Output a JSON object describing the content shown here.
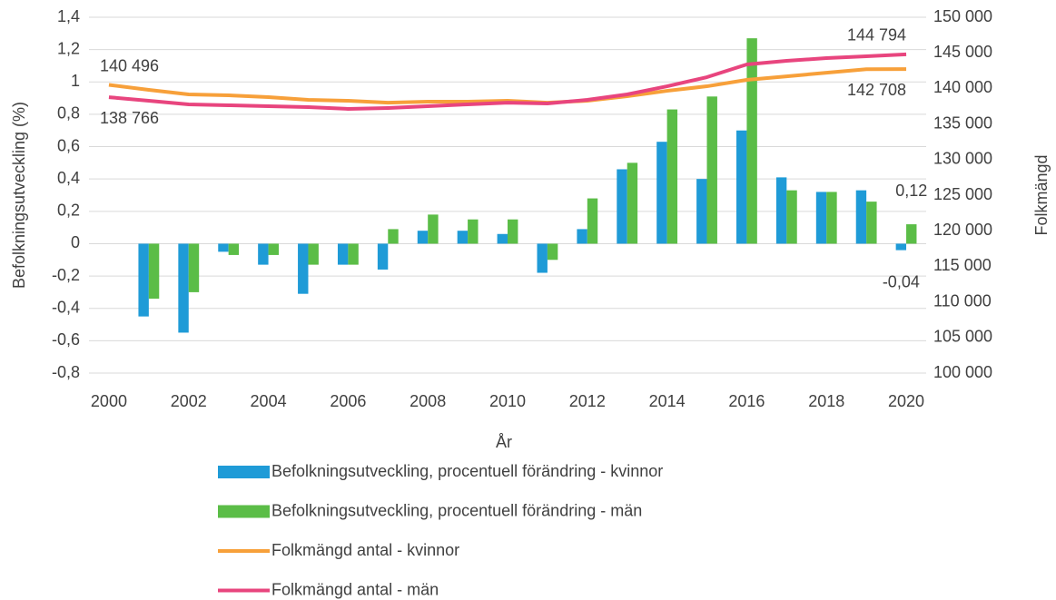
{
  "chart_data": {
    "type": "bar-line",
    "x_label": "År",
    "y_label": "Befolkningsutveckling (%)",
    "y2_label": "Folkmängd",
    "x": [
      2000,
      2001,
      2002,
      2003,
      2004,
      2005,
      2006,
      2007,
      2008,
      2009,
      2010,
      2011,
      2012,
      2013,
      2014,
      2015,
      2016,
      2017,
      2018,
      2019,
      2020
    ],
    "xlim": [
      1999.5,
      2020.5
    ],
    "xticks": [
      2000,
      2002,
      2004,
      2006,
      2008,
      2010,
      2012,
      2014,
      2016,
      2018,
      2020
    ],
    "ylim": [
      -0.8,
      1.4
    ],
    "yticks": [
      {
        "value": -0.8,
        "label": "-0,8"
      },
      {
        "value": -0.6,
        "label": "-0,6"
      },
      {
        "value": -0.4,
        "label": "-0,4"
      },
      {
        "value": -0.2,
        "label": "-0,2"
      },
      0,
      {
        "value": 0.2,
        "label": "0,2"
      },
      {
        "value": 0.4,
        "label": "0,4"
      },
      {
        "value": 0.6,
        "label": "0,6"
      },
      {
        "value": 0.8,
        "label": "0,8"
      },
      1,
      {
        "value": 1.2,
        "label": "1,2"
      },
      {
        "value": 1.4,
        "label": "1,4"
      }
    ],
    "y2lim": [
      100000,
      150000
    ],
    "y2ticks": [
      {
        "value": 100000,
        "label": "100 000"
      },
      {
        "value": 105000,
        "label": "105 000"
      },
      {
        "value": 110000,
        "label": "110 000"
      },
      {
        "value": 115000,
        "label": "115 000"
      },
      {
        "value": 120000,
        "label": "120 000"
      },
      {
        "value": 125000,
        "label": "125 000"
      },
      {
        "value": 130000,
        "label": "130 000"
      },
      {
        "value": 135000,
        "label": "135 000"
      },
      {
        "value": 140000,
        "label": "140 000"
      },
      {
        "value": 145000,
        "label": "145 000"
      },
      {
        "value": 150000,
        "label": "150 000"
      }
    ],
    "grid": true,
    "legend": "bottom",
    "series": [
      {
        "name": "Befolkningsutveckling, procentuell förändring - kvinnor",
        "type": "bar",
        "color": "#1f9bd7",
        "values": [
          null,
          -0.45,
          -0.55,
          -0.05,
          -0.13,
          -0.31,
          -0.13,
          -0.16,
          0.08,
          0.08,
          0.06,
          -0.18,
          0.09,
          0.46,
          0.63,
          0.4,
          0.7,
          0.41,
          0.32,
          0.33,
          -0.04
        ],
        "value_labels": [
          null,
          null,
          null,
          null,
          null,
          null,
          null,
          null,
          null,
          null,
          null,
          null,
          null,
          null,
          null,
          null,
          null,
          null,
          null,
          null,
          "-0,04"
        ]
      },
      {
        "name": "Befolkningsutveckling, procentuell förändring - män",
        "type": "bar",
        "color": "#5bbd47",
        "values": [
          null,
          -0.34,
          -0.3,
          -0.07,
          -0.07,
          -0.13,
          -0.13,
          0.09,
          0.18,
          0.15,
          0.15,
          -0.1,
          0.28,
          0.5,
          0.83,
          0.91,
          1.27,
          0.33,
          0.32,
          0.26,
          0.12
        ],
        "value_labels": [
          null,
          null,
          null,
          null,
          null,
          null,
          null,
          null,
          null,
          null,
          null,
          null,
          null,
          null,
          null,
          null,
          null,
          null,
          null,
          null,
          "0,12"
        ]
      },
      {
        "name": "Folkmängd antal - kvinnor",
        "type": "line",
        "axis": "y2",
        "color": "#f7a03a",
        "values": [
          140496,
          139800,
          139160,
          139030,
          138780,
          138390,
          138260,
          138000,
          138140,
          138140,
          138260,
          138000,
          138260,
          138900,
          139660,
          140300,
          141200,
          141700,
          142200,
          142700,
          142708
        ],
        "value_labels": [
          "140 496",
          null,
          null,
          null,
          null,
          null,
          null,
          null,
          null,
          null,
          null,
          null,
          null,
          null,
          null,
          null,
          null,
          null,
          null,
          null,
          "142 708"
        ]
      },
      {
        "name": "Folkmängd antal - män",
        "type": "line",
        "axis": "y2",
        "color": "#e8457e",
        "values": [
          138766,
          138260,
          137760,
          137630,
          137500,
          137370,
          137120,
          137250,
          137500,
          137760,
          138000,
          137880,
          138390,
          139160,
          140300,
          141580,
          143370,
          143880,
          144260,
          144520,
          144794
        ],
        "value_labels": [
          "138 766",
          null,
          null,
          null,
          null,
          null,
          null,
          null,
          null,
          null,
          null,
          null,
          null,
          null,
          null,
          null,
          null,
          null,
          null,
          null,
          "144 794"
        ]
      }
    ]
  }
}
